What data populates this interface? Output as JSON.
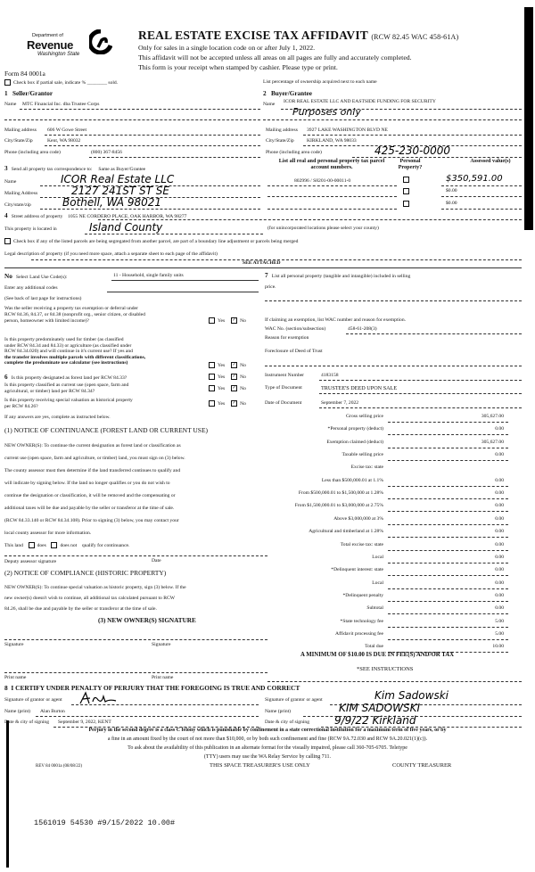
{
  "header": {
    "dept_of": "Department of",
    "revenue": "Revenue",
    "wa_state": "Washington State",
    "title": "REAL ESTATE EXCISE TAX AFFIDAVIT",
    "rcw": "(RCW 82.45 WAC 458-61A)",
    "line1": "Only for sales in a single location code on or after July 1, 2022.",
    "line2": "This affidavit will not be accepted unless all areas on all pages are fully and accurately completed.",
    "line3": "This form is your receipt when stamped by cashier. Please type or print.",
    "form_no": "Form 84 0001a",
    "partial_sale": "Check box if partial sale, indicate % ________ sold.",
    "list_pct": "List percentage of ownership acquired next to each name"
  },
  "seller": {
    "heading_no": "1",
    "heading": "Seller/Grantor",
    "name_label": "Name",
    "name": "MTC Financial Inc. dba Trustee Corps",
    "mail_label": "Mailing address",
    "mail": "606 W Gowe Street",
    "city_label": "City/State/Zip",
    "city": "Kent, WA 98032",
    "phone_label": "Phone (including area code)",
    "phone": "(800) 367-8456"
  },
  "buyer": {
    "heading_no": "2",
    "heading": "Buyer/Grantee",
    "name_label": "Name",
    "name": "ICOR REAL ESTATE LLC AND EASTSIDE FUNDING FOR SECURITY",
    "name_handwritten": "Purposes only",
    "mail_label": "Mailing address",
    "mail": "3927 LAKE WASHINGTON BLVD NE",
    "city_label": "City/State/Zip",
    "city": "KIRKLAND, WA 98033",
    "phone_label": "Phone (including area code)",
    "phone": "425-230-0000"
  },
  "correspondence": {
    "heading_no": "3",
    "heading": "Send all property tax correspondence to:",
    "same_as": "Same as Buyer/Grantee",
    "name_label": "Name",
    "name": "ICOR Real Estate LLC",
    "mail_label": "Mailing Address",
    "mail": "2127 241ST ST SE",
    "city_label": "City/state/zip",
    "city": "Bothell, WA 98021"
  },
  "parcels": {
    "heading": "List all real and personal property tax parcel account numbers.",
    "personal_heading": "Personal Property?",
    "assessed_heading": "Assessed value(s)",
    "rows": [
      {
        "parcel": "802996 / S8201-00-00011-0",
        "value": "$350,591.00"
      },
      {
        "parcel": "",
        "value": "$0.00"
      },
      {
        "parcel": "",
        "value": "$0.00"
      }
    ]
  },
  "property": {
    "no": "4",
    "street_label": "Street address of property",
    "street": "1055 NE CORDERO PLACE, OAK HARBOR, WA 98277",
    "located_label": "This property is located in",
    "located": "Island County",
    "unincorporated": "(for unincorporated locations please select your county)",
    "segregated": "Check box if any of the listed parcels are being segregated from another parcel, are part of a boundary line adjustment or parcels being merged",
    "legal_label": "Legal description of property (if you need more space, attach a separate sheet to each page of the affidavit)",
    "legal": "SEE ATTACHED"
  },
  "land_use": {
    "no": "No",
    "label": "Select Land Use Code(s):",
    "value": "11 - Household, single family units",
    "additional": "Enter any additional codes",
    "see_back": "(See back of last page for instructions)",
    "q1": [
      "Was the seller receiving a property tax exemption or deferral under",
      "RCW 84.36, 84.37, or 84.38 (nonprofit org., senior citizen, or disabled",
      "person, homeowner with limited income)?"
    ],
    "q2": [
      "Is this property predominately used for timber (as classified",
      "under RCW 84.34 and 84.33) or agriculture (as classified under",
      "RCW 84.34.020) and will continue in it's current use? If yes and",
      "the transfer involves multiple parcels with different classifications,",
      "complete the predominate use calculator (see instructions)"
    ],
    "yes": "Yes"
  },
  "section6": {
    "no": "6",
    "q1": "Is this property designated as forest land per RCW 84.33?",
    "q2": [
      "Is this property classified as current use (open space, farm and",
      "agricultural, or timber) land per RCW 84.34?"
    ],
    "q3": [
      "Is this property receiving special valuation as historical property",
      "per RCW 84.26?"
    ],
    "if_any": "If any answers are yes, complete as instructed below."
  },
  "notice1": {
    "heading": "(1) NOTICE OF CONTINUANCE (FOREST LAND OR CURRENT USE)",
    "lines": [
      "NEW OWNER(S): To continue the current designation as forest land or classification as",
      "current use (open space, farm and agriculture, or timber) land, you must sign on (3) below.",
      "The county assessor must then determine if the land transferred continues to qualify and",
      "will indicate by signing below. If the land no longer qualifies or you do not wish to",
      "continue the designation or classification, it will be removed and the compensating or",
      "additional taxes will be due and payable by the seller or transferor at the time of sale.",
      "(RCW 84.33.140 or RCW 84.34.108). Prior to signing (3) below, you may contact your",
      "local county assessor for more information."
    ],
    "this_land": "This land",
    "does": "does",
    "does_not": "does not",
    "qualify": "qualify for continuance.",
    "deputy": "Deputy assessor signature",
    "date": "Date"
  },
  "notice2": {
    "heading": "(2) NOTICE OF COMPLIANCE (HISTORIC PROPERTY)",
    "lines": [
      "NEW OWNER(S): To continue special valuation as historic property, sign (3) below. If the",
      "new owner(s) doesn't wish to continue, all additional tax calculated pursuant to RCW",
      "84.26, shall be due and payable by the seller or transferor at the time of sale."
    ]
  },
  "notice3": {
    "heading": "(3) NEW OWNER(S) SIGNATURE",
    "signature": "Signature",
    "print_name": "Print name"
  },
  "section7": {
    "no": "7",
    "label": "List all personal property (tangible and intangible) included in selling",
    "label2": "price.",
    "exemption_intro": "If claiming an exemption, list WAC number and reason for exemption.",
    "wac_label": "WAC No. (section/subsection)",
    "wac": "458-61-208(3)",
    "reason_label": "Reason for exemption",
    "reason": "Foreclosure of Deed of Trust",
    "instrument_label": "Instrument Number",
    "instrument": "4183158",
    "type_label": "Type of Document",
    "type": "TRUSTEE'S DEED UPON SALE",
    "date_label": "Date of Document",
    "date": "September 7, 2022"
  },
  "fees": [
    {
      "label": "Gross selling price",
      "value": "305,627.00"
    },
    {
      "label": "*Personal property (deduct)",
      "value": "0.00"
    },
    {
      "label": "Exemption claimed (deduct)",
      "value": "305,627.00"
    },
    {
      "label": "Taxable selling price",
      "value": "0.00"
    },
    {
      "label": "Excise tax: state",
      "value": ""
    },
    {
      "label": "Less than $500,000.01 at 1.1%",
      "value": "0.00"
    },
    {
      "label": "From $500,000.01 to $1,500,000 at 1.28%",
      "value": "0.00"
    },
    {
      "label": "From $1,500,000.01 to $3,000,000 at 2.75%",
      "value": "0.00"
    },
    {
      "label": "Above $3,000,000 at 3%",
      "value": "0.00"
    },
    {
      "label": "Agricultural and timberland at 1.28%",
      "value": "0.00"
    },
    {
      "label": "Total excise tax: state",
      "value": "0.00"
    },
    {
      "label": "Local",
      "value": "0.00"
    },
    {
      "label": "*Delinquent interest: state",
      "value": "0.00"
    },
    {
      "label": "Local",
      "value": "0.00"
    },
    {
      "label": "*Delinquent penalty",
      "value": "0.00"
    },
    {
      "label": "Subtotal",
      "value": "0.00"
    },
    {
      "label": "*State technology fee",
      "value": "5.00"
    },
    {
      "label": "Affidavit processing fee",
      "value": "5.00"
    },
    {
      "label": "Total due",
      "value": "10.00"
    }
  ],
  "minimum": "A MINIMUM OF $10.00 IS DUE IN FEE(S) AND/OR TAX",
  "see_instructions": "*SEE INSTRUCTIONS",
  "certify": {
    "no": "8",
    "heading": "I CERTIFY UNDER PENALTY OF PERJURY THAT THE FOREGOING IS TRUE AND CORRECT",
    "sig_label": "Signature of grantor or agent",
    "name_label": "Name (print)",
    "date_label": "Date & city of signing",
    "left_name": "Alan Burton",
    "left_date": "September 9, 2022, KENT",
    "right_sig": "Kim Sadowski",
    "right_name": "KIM SADOWSKI",
    "right_date": "9/9/22  Kirkland"
  },
  "footer": {
    "perjury": "Perjury in the second degree is a class C felony which is punishable by confinement in a state correctional institution for a maximum term of five years, or by",
    "perjury2": "a fine in an amount fixed by the court of not more than $10,000, or by both such confinement and fine (RCW 9A.72.030 and RCW 9A.20.021(1)(c)).",
    "ask": "To ask about the availability of this publication in an alternate format for the visually impaired, please call 360-705-6705. Teletype",
    "tty": "(TTY) users may use the WA Relay Service by calling 711.",
    "rev": "REV 84 0001a (08/08/22)",
    "treasurer_use": "THIS SPACE TREASURER'S USE ONLY",
    "county_treasurer": "COUNTY TREASURER",
    "stamp": "1561019 54530 #9/15/2022 10.00#"
  }
}
